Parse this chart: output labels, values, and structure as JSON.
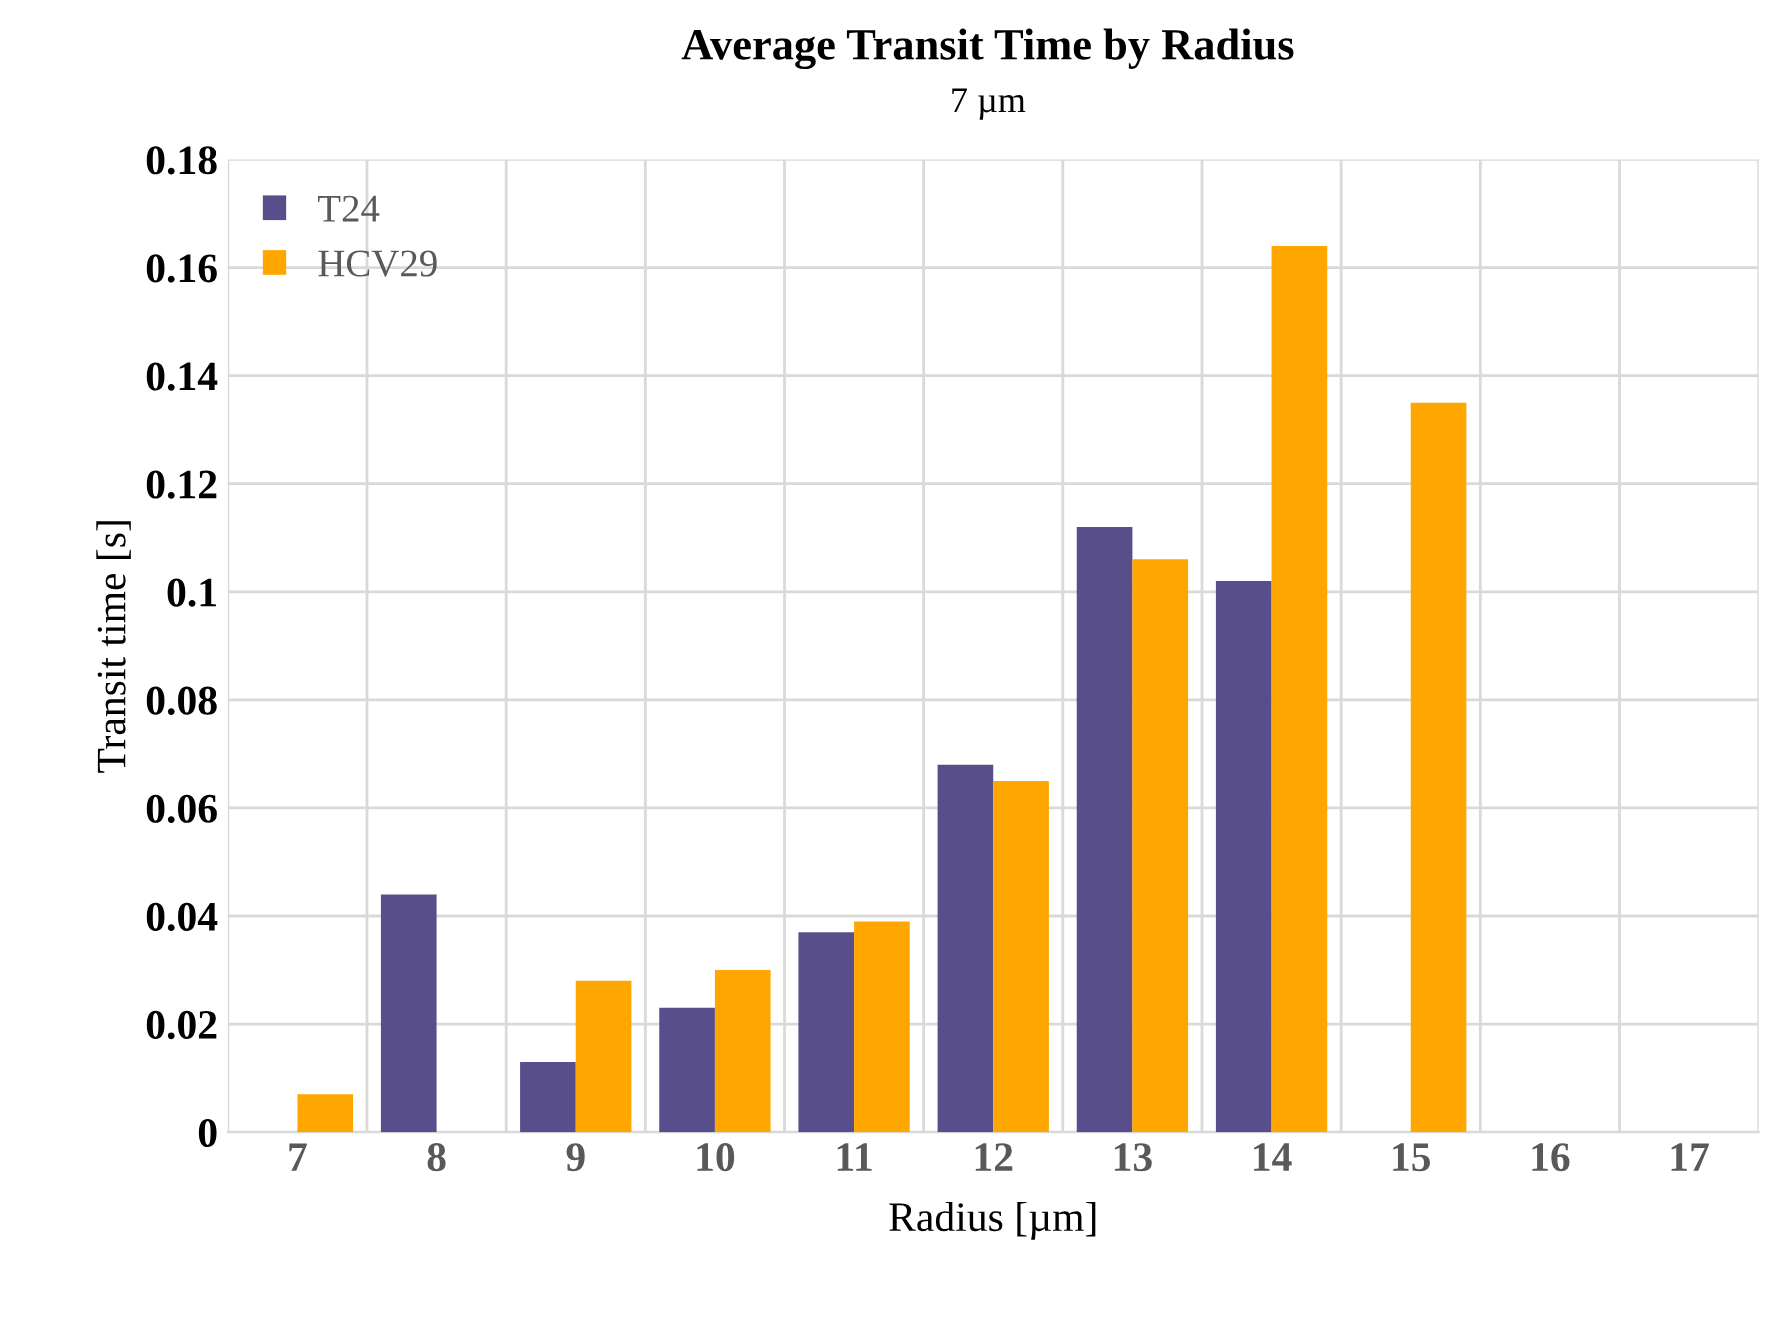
{
  "chart_data": {
    "type": "bar",
    "title": "Average Transit Time by Radius",
    "subtitle": "7 µm",
    "xlabel": "Radius [µm]",
    "ylabel": "Transit time [s]",
    "categories": [
      "7",
      "8",
      "9",
      "10",
      "11",
      "12",
      "13",
      "14",
      "15",
      "16",
      "17"
    ],
    "series": [
      {
        "name": "T24",
        "color": "#584e8c",
        "values": [
          0,
          0.044,
          0.013,
          0.023,
          0.037,
          0.068,
          0.112,
          0.102,
          0,
          0,
          0
        ]
      },
      {
        "name": "HCV29",
        "color": "#ffa600",
        "values": [
          0.007,
          0,
          0.028,
          0.03,
          0.039,
          0.065,
          0.106,
          0.164,
          0.135,
          0,
          0
        ]
      }
    ],
    "ylim": [
      0,
      0.18
    ],
    "yticks": [
      0,
      0.02,
      0.04,
      0.06,
      0.08,
      0.1,
      0.12,
      0.14,
      0.16,
      0.18
    ],
    "grid": true,
    "legend": "top left"
  }
}
